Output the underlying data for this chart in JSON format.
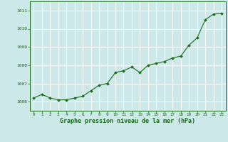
{
  "x": [
    0,
    1,
    2,
    3,
    4,
    5,
    6,
    7,
    8,
    9,
    10,
    11,
    12,
    13,
    14,
    15,
    16,
    17,
    18,
    19,
    20,
    21,
    22,
    23
  ],
  "y": [
    1006.2,
    1006.4,
    1006.2,
    1006.1,
    1006.1,
    1006.2,
    1006.3,
    1006.6,
    1006.9,
    1007.0,
    1007.6,
    1007.7,
    1007.9,
    1007.6,
    1008.0,
    1008.1,
    1008.2,
    1008.4,
    1008.5,
    1009.1,
    1009.5,
    1010.5,
    1010.8,
    1010.85
  ],
  "line_color": "#1a6b1a",
  "marker_color": "#1a6b1a",
  "bg_color": "#cce8e8",
  "grid_color": "#ffffff",
  "xlabel": "Graphe pression niveau de la mer (hPa)",
  "xlabel_color": "#1a6b1a",
  "ylabel_ticks": [
    1006,
    1007,
    1008,
    1009,
    1010,
    1011
  ],
  "xlim": [
    -0.5,
    23.5
  ],
  "ylim": [
    1005.5,
    1011.5
  ],
  "xtick_labels": [
    "0",
    "1",
    "2",
    "3",
    "4",
    "5",
    "6",
    "7",
    "8",
    "9",
    "10",
    "11",
    "12",
    "13",
    "14",
    "15",
    "16",
    "17",
    "18",
    "19",
    "20",
    "21",
    "22",
    "23"
  ],
  "tick_color": "#1a6b1a",
  "border_color": "#1a6b1a",
  "fig_width": 3.2,
  "fig_height": 2.0,
  "dpi": 100
}
